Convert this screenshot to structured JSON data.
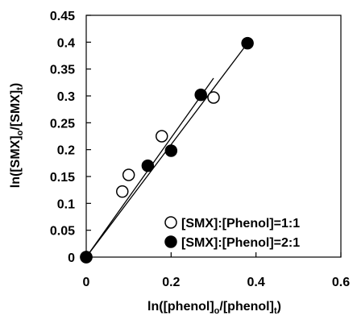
{
  "chart_data": {
    "type": "scatter",
    "xlabel": "ln([phenol]o/[phenol]t)",
    "ylabel": "ln([SMX]o/[SMX]t)",
    "xlim": [
      0,
      0.6
    ],
    "ylim": [
      0,
      0.45
    ],
    "x_ticks": [
      0,
      0.2,
      0.4,
      0.6
    ],
    "y_ticks": [
      0,
      0.05,
      0.1,
      0.15,
      0.2,
      0.25,
      0.3,
      0.35,
      0.4,
      0.45
    ],
    "x_tick_labels": [
      "0",
      "0.2",
      "0.4",
      "0.6"
    ],
    "y_tick_labels": [
      "0",
      "0.05",
      "0.1",
      "0.15",
      "0.2",
      "0.25",
      "0.3",
      "0.35",
      "0.4",
      "0.45"
    ],
    "grid": false,
    "legend_position": "bottom-right",
    "series": [
      {
        "name": "[SMX]:[Phenol]=1:1",
        "marker": "open-circle",
        "color": "#000000",
        "x": [
          0,
          0.085,
          0.1,
          0.178,
          0.3
        ],
        "y": [
          0,
          0.122,
          0.153,
          0.225,
          0.297
        ]
      },
      {
        "name": "[SMX]:[Phenol]=2:1",
        "marker": "filled-circle",
        "color": "#000000",
        "x": [
          0,
          0.145,
          0.2,
          0.27,
          0.38
        ],
        "y": [
          0,
          0.17,
          0.198,
          0.302,
          0.398
        ]
      }
    ],
    "fit_lines": [
      {
        "series": "[SMX]:[Phenol]=1:1",
        "x": [
          0,
          0.3
        ],
        "y": [
          0,
          0.333
        ]
      },
      {
        "series": "[SMX]:[Phenol]=2:1",
        "x": [
          0,
          0.38
        ],
        "y": [
          0,
          0.398
        ]
      }
    ]
  }
}
